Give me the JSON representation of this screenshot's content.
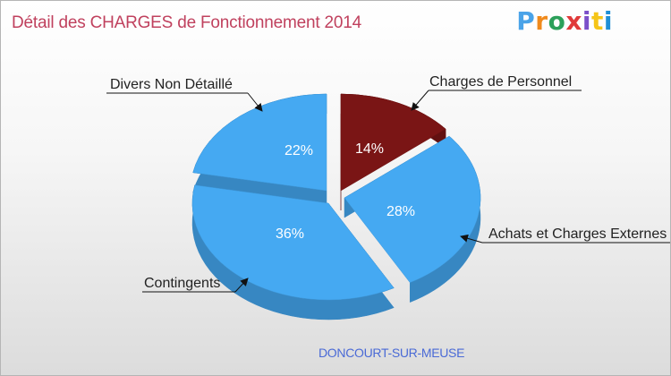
{
  "title": "Détail des CHARGES de Fonctionnement 2014",
  "logo": {
    "text": "Proxiti",
    "colors": [
      "#4aa3e8",
      "#f08a1c",
      "#2ca05a",
      "#e03a3a",
      "#7b4fc9",
      "#f5c518",
      "#1f8fd6"
    ]
  },
  "location": "DONCOURT-SUR-MEUSE",
  "chart_data": {
    "type": "pie",
    "title": "Détail des CHARGES de Fonctionnement 2014",
    "slices": [
      {
        "name": "Charges de Personnel",
        "value": 14,
        "label": "14%",
        "color": "#7a1515"
      },
      {
        "name": "Achats et Charges Externes",
        "value": 28,
        "label": "28%",
        "color": "#45a9f2"
      },
      {
        "name": "Contingents",
        "value": 36,
        "label": "36%",
        "color": "#45a9f2"
      },
      {
        "name": "Divers Non Détaillé",
        "value": 22,
        "label": "22%",
        "color": "#45a9f2"
      }
    ]
  }
}
